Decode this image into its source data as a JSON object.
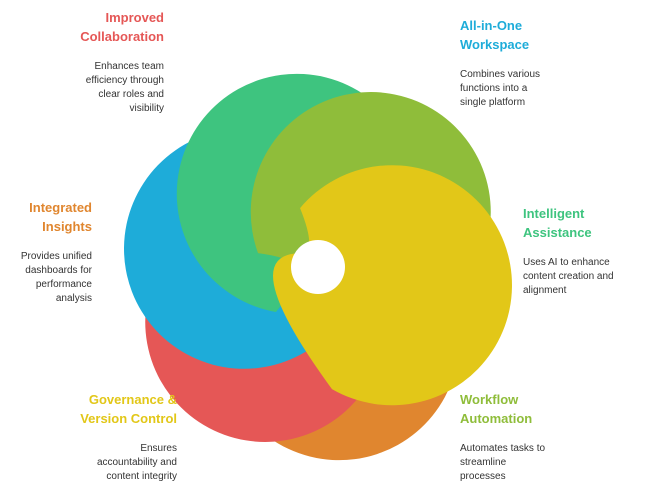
{
  "features": [
    {
      "key": "collab",
      "title": [
        "Improved",
        "Collaboration"
      ],
      "desc": [
        "Enhances team",
        "efficiency through",
        "clear roles and",
        "visibility"
      ],
      "color": "#e55756"
    },
    {
      "key": "workspace",
      "title": [
        "All-in-One",
        "Workspace"
      ],
      "desc": [
        "Combines various",
        "functions into a",
        "single platform"
      ],
      "color": "#1eacd9"
    },
    {
      "key": "assist",
      "title": [
        "Intelligent",
        "Assistance"
      ],
      "desc": [
        "Uses AI to enhance",
        "content creation and",
        "alignment"
      ],
      "color": "#3ec47f"
    },
    {
      "key": "workflow",
      "title": [
        "Workflow",
        "Automation"
      ],
      "desc": [
        "Automates tasks to",
        "streamline",
        "processes"
      ],
      "color": "#8fbd3a"
    },
    {
      "key": "governance",
      "title": [
        "Governance &",
        "Version Control"
      ],
      "desc": [
        "Ensures",
        "accountability and",
        "content integrity"
      ],
      "color": "#e2c718"
    },
    {
      "key": "insights",
      "title": [
        "Integrated",
        "Insights"
      ],
      "desc": [
        "Provides unified",
        "dashboards for",
        "performance",
        "analysis"
      ],
      "color": "#e0862f"
    }
  ]
}
